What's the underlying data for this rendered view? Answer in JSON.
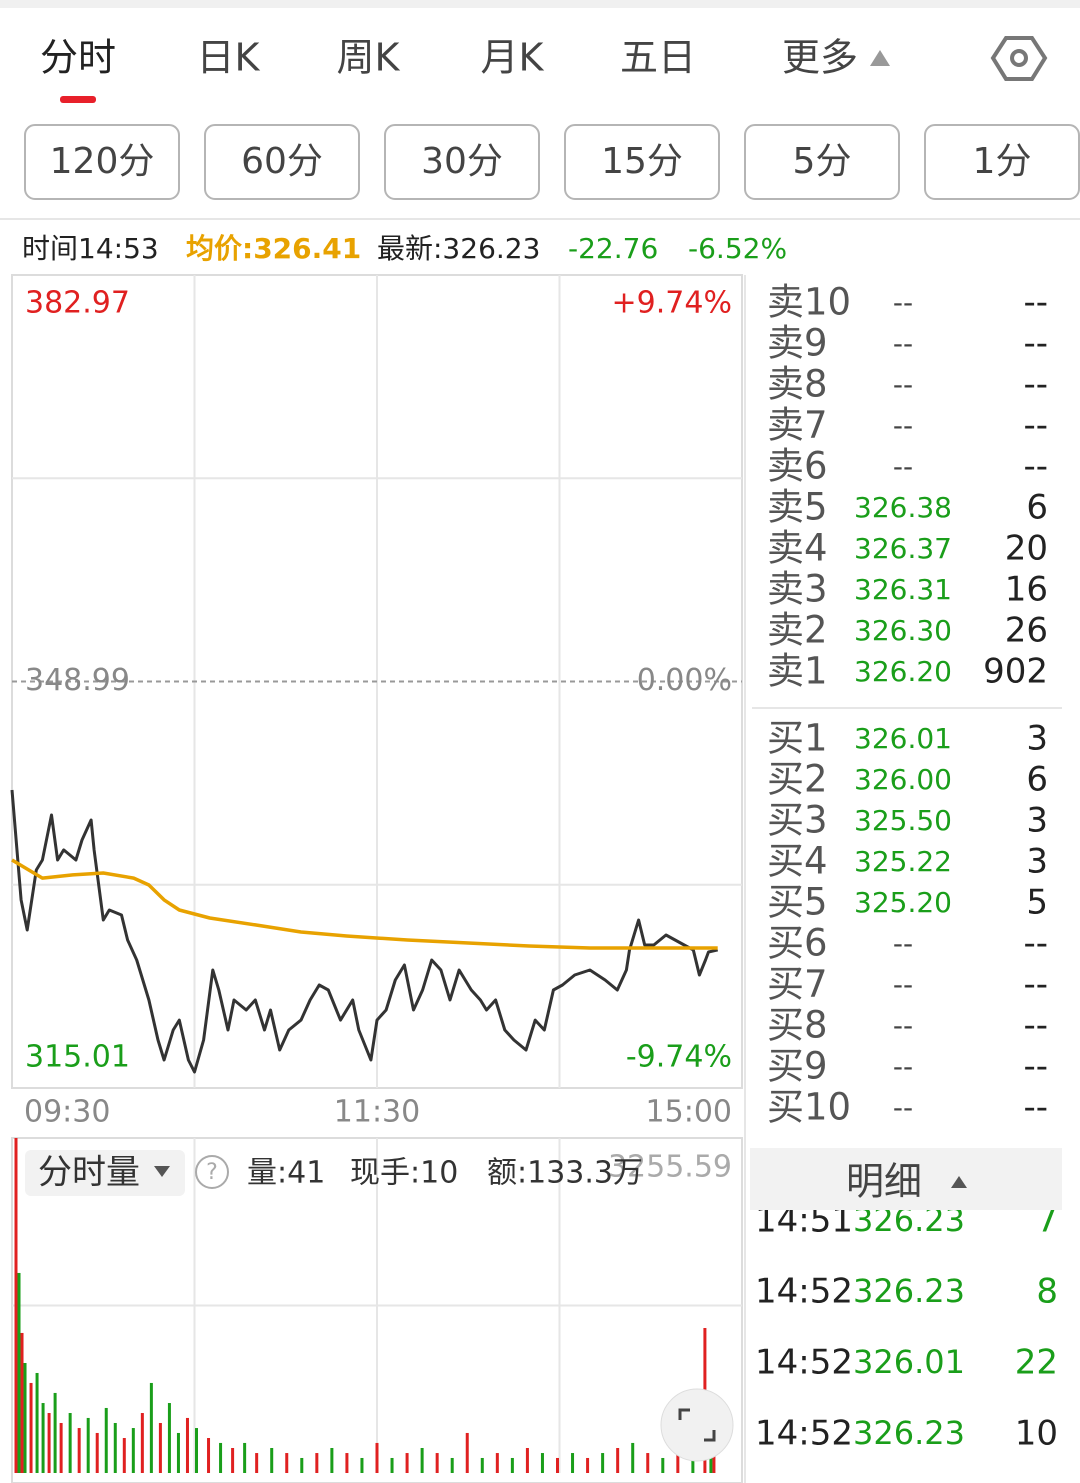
{
  "tabs": [
    "分时",
    "日K",
    "周K",
    "月K",
    "五日",
    "更多"
  ],
  "periods": [
    "120分",
    "60分",
    "30分",
    "15分",
    "5分",
    "1分"
  ],
  "info": {
    "time": "时间14:53",
    "avg": "均价:326.41",
    "latest": "最新:326.23",
    "change": "-22.76",
    "change_pct": "-6.52%"
  },
  "chart_data": [
    {
      "type": "line",
      "xlim": [
        0,
        240
      ],
      "xticks": [
        {
          "value": 0,
          "label": "09:30"
        },
        {
          "value": 120,
          "label": "11:30"
        },
        {
          "value": 240,
          "label": "15:00"
        }
      ],
      "ylim": [
        315.01,
        382.97
      ],
      "yticks": [
        315.01,
        348.99,
        382.97
      ],
      "y2lim": [
        -9.74,
        9.74
      ],
      "y2ticks": [
        {
          "value": 9.74,
          "label": "+9.74%"
        },
        {
          "value": 0,
          "label": "0.00%"
        },
        {
          "value": -9.74,
          "label": "-9.74%"
        }
      ],
      "grid": true,
      "series": [
        {
          "color": "#333333",
          "x": [
            0,
            3,
            5,
            8,
            10,
            13,
            15,
            17,
            21,
            23,
            26,
            27,
            30,
            32,
            36,
            38,
            41,
            45,
            48,
            50,
            53,
            55,
            58,
            60,
            63,
            66,
            68,
            71,
            73,
            77,
            80,
            83,
            85,
            88,
            91,
            95,
            98,
            101,
            104,
            108,
            112,
            114,
            118,
            120,
            123,
            126,
            129,
            132,
            135,
            138,
            141,
            144,
            147,
            151,
            154,
            156,
            159,
            162,
            165,
            169,
            172,
            175,
            178,
            181,
            185,
            190,
            195,
            199,
            202,
            203,
            206,
            208,
            211,
            215,
            218,
            221,
            224,
            226,
            228,
            229,
            232
          ],
          "values": [
            339.92,
            330.73,
            328.22,
            333.23,
            334.07,
            337.83,
            334.07,
            334.91,
            334.07,
            335.74,
            337.41,
            334.91,
            329.05,
            329.89,
            329.47,
            327.38,
            325.71,
            322.37,
            319.02,
            317.35,
            319.86,
            320.69,
            317.35,
            316.35,
            319.02,
            324.87,
            323.2,
            319.86,
            322.37,
            321.53,
            322.37,
            319.86,
            321.53,
            318.19,
            319.86,
            320.69,
            322.37,
            323.62,
            323.2,
            320.69,
            322.37,
            319.86,
            317.35,
            320.69,
            321.53,
            324.04,
            325.29,
            321.53,
            323.2,
            325.71,
            324.87,
            322.37,
            324.87,
            323.2,
            322.37,
            321.53,
            322.37,
            319.86,
            319.02,
            318.19,
            320.69,
            319.86,
            323.2,
            323.62,
            324.46,
            324.87,
            324.04,
            323.2,
            324.87,
            326.55,
            329.05,
            326.96,
            326.96,
            327.8,
            327.38,
            326.96,
            326.55,
            324.46,
            325.71,
            326.38,
            326.55
          ]
        },
        {
          "color": "#e8a200",
          "x": [
            0,
            10,
            20,
            30,
            40,
            45,
            50,
            55,
            65,
            80,
            95,
            110,
            130,
            150,
            170,
            190,
            210,
            232
          ],
          "values": [
            334.07,
            332.56,
            332.82,
            332.98,
            332.56,
            331.98,
            330.73,
            329.89,
            329.22,
            328.64,
            328.05,
            327.72,
            327.38,
            327.13,
            326.88,
            326.71,
            326.71,
            326.71
          ]
        }
      ]
    },
    {
      "type": "bar",
      "xlim": [
        0,
        240
      ],
      "ylim": [
        0,
        3255.59
      ],
      "yticks": [
        3255.59
      ],
      "x": [
        0,
        1,
        2,
        3,
        5,
        7,
        9,
        11,
        13,
        15,
        18,
        21,
        24,
        27,
        30,
        33,
        36,
        39,
        42,
        45,
        48,
        51,
        54,
        57,
        60,
        64,
        68,
        72,
        76,
        80,
        85,
        90,
        95,
        100,
        105,
        110,
        115,
        120,
        125,
        130,
        135,
        140,
        145,
        150,
        155,
        160,
        165,
        170,
        175,
        180,
        185,
        190,
        195,
        200,
        205,
        210,
        215,
        220,
        225,
        229,
        231,
        232
      ],
      "values": [
        3255.59,
        1944,
        1361,
        1069,
        875,
        972,
        680,
        583,
        778,
        486,
        583,
        437,
        535,
        389,
        632,
        486,
        340,
        437,
        583,
        875,
        486,
        680,
        389,
        535,
        437,
        340,
        292,
        243,
        292,
        194,
        243,
        194,
        146,
        194,
        243,
        194,
        146,
        292,
        146,
        194,
        243,
        194,
        146,
        389,
        146,
        194,
        146,
        243,
        194,
        146,
        194,
        146,
        194,
        243,
        292,
        194,
        146,
        243,
        194,
        1409,
        243,
        194
      ],
      "colors": [
        "#e02020",
        "#1a9e1a",
        "#e02020",
        "#1a9e1a",
        "#e02020",
        "#1a9e1a",
        "#1a9e1a",
        "#e02020",
        "#1a9e1a",
        "#e02020",
        "#1a9e1a",
        "#e02020",
        "#1a9e1a",
        "#e02020",
        "#1a9e1a",
        "#1a9e1a",
        "#e02020",
        "#1a9e1a",
        "#e02020",
        "#1a9e1a",
        "#e02020",
        "#1a9e1a",
        "#1a9e1a",
        "#e02020",
        "#1a9e1a",
        "#e02020",
        "#1a9e1a",
        "#e02020",
        "#1a9e1a",
        "#e02020",
        "#1a9e1a",
        "#e02020",
        "#1a9e1a",
        "#e02020",
        "#1a9e1a",
        "#e02020",
        "#1a9e1a",
        "#e02020",
        "#1a9e1a",
        "#e02020",
        "#1a9e1a",
        "#e02020",
        "#1a9e1a",
        "#e02020",
        "#1a9e1a",
        "#e02020",
        "#1a9e1a",
        "#e02020",
        "#1a9e1a",
        "#e02020",
        "#1a9e1a",
        "#e02020",
        "#1a9e1a",
        "#e02020",
        "#1a9e1a",
        "#e02020",
        "#1a9e1a",
        "#e02020",
        "#1a9e1a",
        "#e02020",
        "#1a9e1a",
        "#e02020"
      ]
    }
  ],
  "volume_header": {
    "title": "分时量",
    "volume": "量:41",
    "hand": "现手:10",
    "amount": "额:133.3万"
  },
  "order_book": {
    "sell": [
      {
        "label": "卖10",
        "price": "--",
        "volume": "--"
      },
      {
        "label": "卖9",
        "price": "--",
        "volume": "--"
      },
      {
        "label": "卖8",
        "price": "--",
        "volume": "--"
      },
      {
        "label": "卖7",
        "price": "--",
        "volume": "--"
      },
      {
        "label": "卖6",
        "price": "--",
        "volume": "--"
      },
      {
        "label": "卖5",
        "price": "326.38",
        "volume": 6
      },
      {
        "label": "卖4",
        "price": "326.37",
        "volume": 20
      },
      {
        "label": "卖3",
        "price": "326.31",
        "volume": 16
      },
      {
        "label": "卖2",
        "price": "326.30",
        "volume": 26
      },
      {
        "label": "卖1",
        "price": "326.20",
        "volume": 902
      }
    ],
    "buy": [
      {
        "label": "买1",
        "price": "326.01",
        "volume": 3
      },
      {
        "label": "买2",
        "price": "326.00",
        "volume": 6
      },
      {
        "label": "买3",
        "price": "325.50",
        "volume": 3
      },
      {
        "label": "买4",
        "price": "325.22",
        "volume": 3
      },
      {
        "label": "买5",
        "price": "325.20",
        "volume": 5
      },
      {
        "label": "买6",
        "price": "--",
        "volume": "--"
      },
      {
        "label": "买7",
        "price": "--",
        "volume": "--"
      },
      {
        "label": "买8",
        "price": "--",
        "volume": "--"
      },
      {
        "label": "买9",
        "price": "--",
        "volume": "--"
      },
      {
        "label": "买10",
        "price": "--",
        "volume": "--"
      }
    ]
  },
  "detail": {
    "title": "明细",
    "rows": [
      [
        "14:51",
        "326.23",
        7
      ],
      [
        "14:52",
        "326.23",
        8
      ],
      [
        "14:52",
        "326.01",
        22
      ],
      [
        "14:52",
        "326.23",
        10
      ]
    ]
  }
}
